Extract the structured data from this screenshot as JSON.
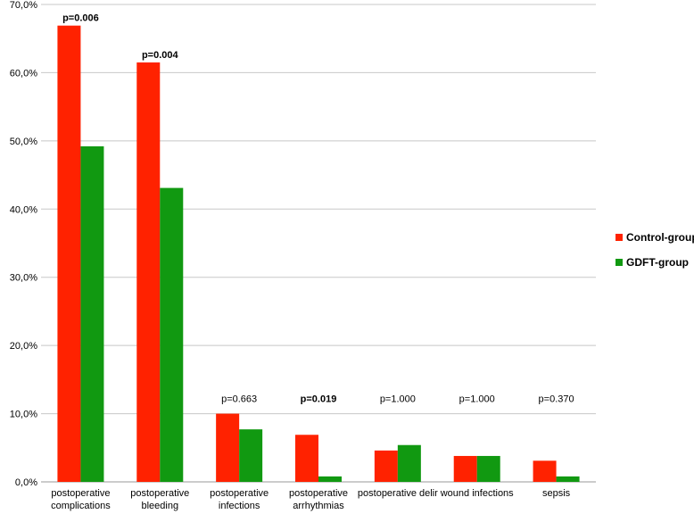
{
  "chart_data": {
    "type": "bar",
    "title": "",
    "xlabel": "",
    "ylabel": "",
    "ylim": [
      0,
      70
    ],
    "y_tick_labels": [
      "0,0%",
      "10,0%",
      "20,0%",
      "30,0%",
      "40,0%",
      "50,0%",
      "60,0%",
      "70,0%"
    ],
    "grid": true,
    "legend_position": "right",
    "categories": [
      [
        "postoperative",
        "complications"
      ],
      [
        "postoperative",
        "bleeding"
      ],
      [
        "postoperative",
        "infections"
      ],
      [
        "postoperative",
        "arrhythmias"
      ],
      [
        "postoperative delir"
      ],
      [
        "wound infections"
      ],
      [
        "sepsis"
      ]
    ],
    "series": [
      {
        "name": "Control-group",
        "color": "#ff2200",
        "values": [
          66.9,
          61.5,
          10.0,
          6.9,
          4.6,
          3.8,
          3.1
        ]
      },
      {
        "name": "GDFT-group",
        "color": "#119911",
        "values": [
          49.2,
          43.1,
          7.7,
          0.8,
          5.4,
          3.8,
          0.8
        ]
      }
    ],
    "annotations": [
      {
        "text": "p=0.006",
        "bold": true
      },
      {
        "text": "p=0.004",
        "bold": true
      },
      {
        "text": "p=0.663",
        "bold": false
      },
      {
        "text": "p=0.019",
        "bold": true
      },
      {
        "text": "p=1.000",
        "bold": false
      },
      {
        "text": "p=1.000",
        "bold": false
      },
      {
        "text": "p=0.370",
        "bold": false
      }
    ]
  }
}
